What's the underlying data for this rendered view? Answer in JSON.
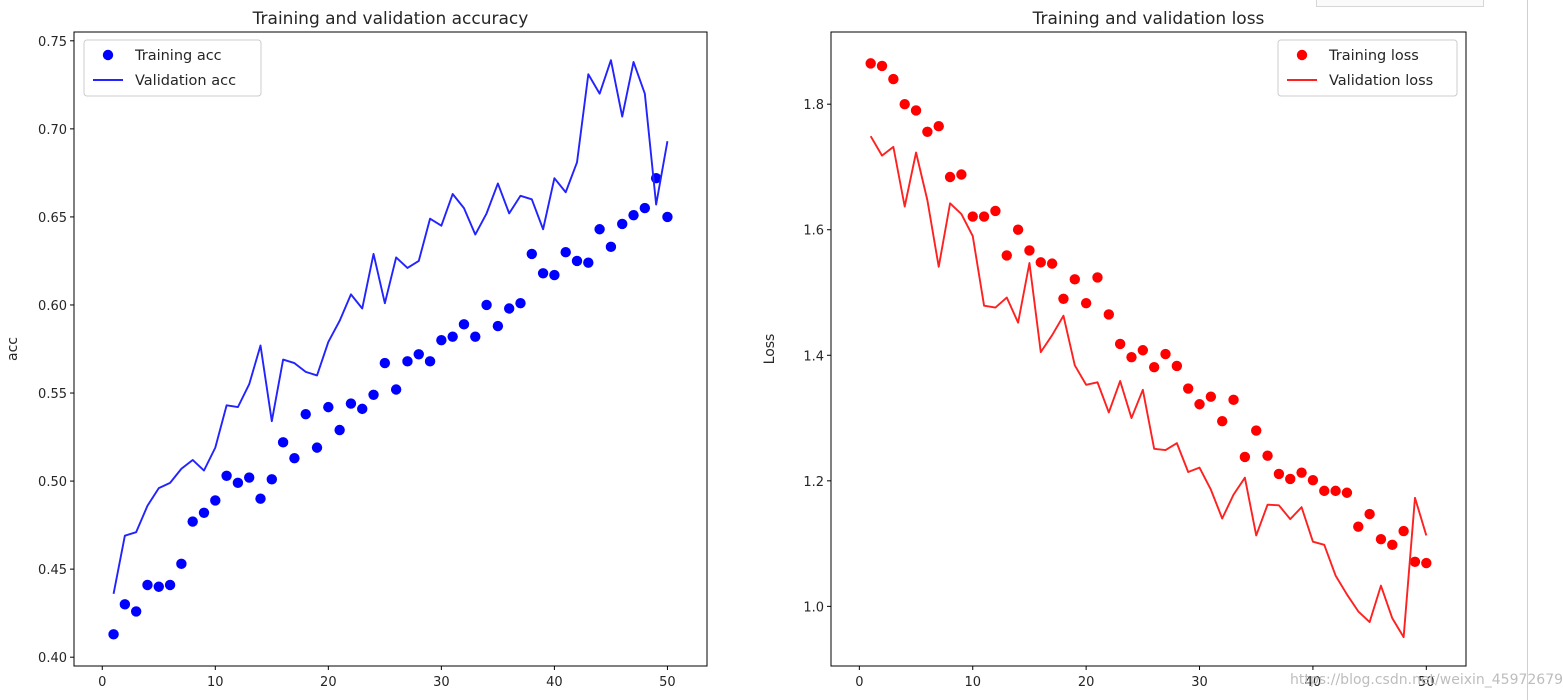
{
  "chart_data": [
    {
      "type": "scatter+line",
      "title": "Training and validation accuracy",
      "xlabel": "",
      "ylabel": "acc",
      "xlim": [
        -2.5,
        53.5
      ],
      "ylim": [
        0.395,
        0.755
      ],
      "xticks": [
        0,
        10,
        20,
        30,
        40,
        50
      ],
      "yticks": [
        0.4,
        0.45,
        0.5,
        0.55,
        0.6,
        0.65,
        0.7,
        0.75
      ],
      "ytick_labels": [
        "0.40",
        "0.45",
        "0.50",
        "0.55",
        "0.60",
        "0.65",
        "0.70",
        "0.75"
      ],
      "legend_position": "upper-left",
      "x": [
        1,
        2,
        3,
        4,
        5,
        6,
        7,
        8,
        9,
        10,
        11,
        12,
        13,
        14,
        15,
        16,
        17,
        18,
        19,
        20,
        21,
        22,
        23,
        24,
        25,
        26,
        27,
        28,
        29,
        30,
        31,
        32,
        33,
        34,
        35,
        36,
        37,
        38,
        39,
        40,
        41,
        42,
        43,
        44,
        45,
        46,
        47,
        48,
        49,
        50
      ],
      "series": [
        {
          "name": "Training acc",
          "style": "dots",
          "color": "#0000ff",
          "values": [
            0.413,
            0.43,
            0.426,
            0.441,
            0.44,
            0.441,
            0.453,
            0.477,
            0.482,
            0.489,
            0.503,
            0.499,
            0.502,
            0.49,
            0.501,
            0.522,
            0.513,
            0.538,
            0.519,
            0.542,
            0.529,
            0.544,
            0.541,
            0.549,
            0.567,
            0.552,
            0.568,
            0.572,
            0.568,
            0.58,
            0.582,
            0.589,
            0.582,
            0.6,
            0.588,
            0.598,
            0.601,
            0.629,
            0.618,
            0.617,
            0.63,
            0.625,
            0.624,
            0.643,
            0.633,
            0.646,
            0.651,
            0.655,
            0.672,
            0.65
          ]
        },
        {
          "name": "Validation acc",
          "style": "line",
          "color": "#2323ff",
          "values": [
            0.436,
            0.469,
            0.471,
            0.486,
            0.496,
            0.499,
            0.507,
            0.512,
            0.506,
            0.519,
            0.543,
            0.542,
            0.555,
            0.577,
            0.534,
            0.569,
            0.567,
            0.562,
            0.56,
            0.579,
            0.591,
            0.606,
            0.598,
            0.629,
            0.601,
            0.627,
            0.621,
            0.625,
            0.649,
            0.645,
            0.663,
            0.655,
            0.64,
            0.652,
            0.669,
            0.652,
            0.662,
            0.66,
            0.643,
            0.672,
            0.664,
            0.681,
            0.731,
            0.72,
            0.739,
            0.707,
            0.738,
            0.72,
            0.657,
            0.693
          ]
        }
      ]
    },
    {
      "type": "scatter+line",
      "title": "Training and validation loss",
      "xlabel": "",
      "ylabel": "Loss",
      "xlim": [
        -2.5,
        53.5
      ],
      "ylim": [
        0.905,
        1.915
      ],
      "xticks": [
        0,
        10,
        20,
        30,
        40,
        50
      ],
      "yticks": [
        1.0,
        1.2,
        1.4,
        1.6,
        1.8
      ],
      "ytick_labels": [
        "1.0",
        "1.2",
        "1.4",
        "1.6",
        "1.8"
      ],
      "legend_position": "upper-right",
      "x": [
        1,
        2,
        3,
        4,
        5,
        6,
        7,
        8,
        9,
        10,
        11,
        12,
        13,
        14,
        15,
        16,
        17,
        18,
        19,
        20,
        21,
        22,
        23,
        24,
        25,
        26,
        27,
        28,
        29,
        30,
        31,
        32,
        33,
        34,
        35,
        36,
        37,
        38,
        39,
        40,
        41,
        42,
        43,
        44,
        45,
        46,
        47,
        48,
        49,
        50
      ],
      "series": [
        {
          "name": "Training loss",
          "style": "dots",
          "color": "#ff0000",
          "values": [
            1.865,
            1.861,
            1.84,
            1.8,
            1.79,
            1.756,
            1.765,
            1.684,
            1.688,
            1.621,
            1.621,
            1.63,
            1.559,
            1.6,
            1.567,
            1.548,
            1.546,
            1.49,
            1.521,
            1.483,
            1.524,
            1.465,
            1.418,
            1.397,
            1.408,
            1.381,
            1.402,
            1.383,
            1.347,
            1.322,
            1.334,
            1.295,
            1.329,
            1.238,
            1.28,
            1.24,
            1.211,
            1.203,
            1.213,
            1.201,
            1.184,
            1.184,
            1.181,
            1.127,
            1.147,
            1.107,
            1.098,
            1.12,
            1.071,
            1.069
          ]
        },
        {
          "name": "Validation loss",
          "style": "line",
          "color": "#ff2020",
          "values": [
            1.749,
            1.718,
            1.732,
            1.637,
            1.723,
            1.647,
            1.541,
            1.642,
            1.625,
            1.59,
            1.479,
            1.476,
            1.492,
            1.452,
            1.547,
            1.405,
            1.432,
            1.463,
            1.384,
            1.353,
            1.357,
            1.309,
            1.359,
            1.3,
            1.345,
            1.251,
            1.249,
            1.26,
            1.214,
            1.221,
            1.186,
            1.14,
            1.178,
            1.205,
            1.113,
            1.162,
            1.161,
            1.139,
            1.158,
            1.103,
            1.098,
            1.049,
            1.019,
            0.992,
            0.975,
            1.033,
            0.981,
            0.951,
            1.173,
            1.113
          ]
        }
      ]
    }
  ],
  "watermark": "https://blog.csdn.net/weixin_45972679"
}
